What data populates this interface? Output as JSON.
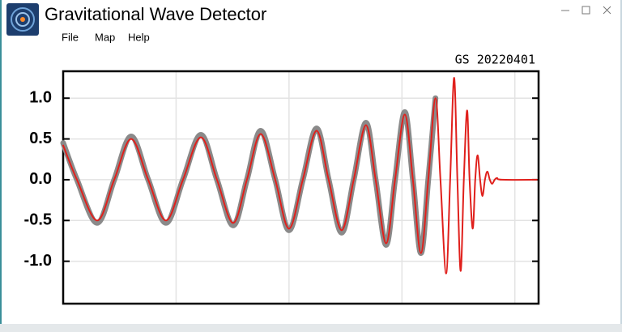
{
  "window": {
    "title": "Gravitational Wave Detector",
    "menu": [
      "File",
      "Map",
      "Help"
    ]
  },
  "chart_data": {
    "type": "line",
    "title": "GS 20220401",
    "x": [
      0,
      0.122,
      0.301,
      0.452,
      0.602,
      0.753,
      0.91,
      1.061,
      1.219,
      1.362,
      1.505,
      1.627,
      1.749,
      1.878,
      2.0,
      2.122,
      2.244,
      2.351,
      2.466,
      2.573,
      2.681,
      2.767,
      2.86,
      2.939,
      3.025,
      3.097,
      3.168,
      3.233,
      3.297,
      3.341,
      3.391,
      3.427,
      3.462,
      3.491,
      3.52,
      3.548,
      3.577,
      3.599,
      3.627,
      3.649,
      3.67,
      3.692,
      3.713,
      3.735,
      3.756,
      3.778,
      3.799,
      3.821,
      3.842,
      3.885,
      4.194
    ],
    "series": [
      {
        "color": "#8a8a8a",
        "linewidth": 7,
        "values": [
          0.45,
          0,
          -0.53,
          0,
          0.53,
          0,
          -0.53,
          0,
          0.55,
          0,
          -0.56,
          0,
          0.6,
          0,
          -0.62,
          0,
          0.63,
          0,
          -0.65,
          0,
          0.7,
          0,
          -0.8,
          0,
          0.83,
          0,
          -0.9,
          0,
          1.0,
          null,
          null,
          null,
          null,
          null,
          null,
          null,
          null,
          null,
          null,
          null,
          null,
          null,
          null,
          null,
          null,
          null,
          null,
          null,
          null,
          null,
          null
        ]
      },
      {
        "color": "#e0201c",
        "linewidth": 2,
        "values": [
          0.42,
          0,
          -0.5,
          0,
          0.5,
          0,
          -0.5,
          0,
          0.52,
          0,
          -0.53,
          0,
          0.56,
          0,
          -0.6,
          0,
          0.6,
          0,
          -0.62,
          0,
          0.67,
          0,
          -0.78,
          0,
          0.8,
          0,
          -0.9,
          0,
          1.0,
          0,
          -1.15,
          0,
          1.25,
          0,
          -1.12,
          0,
          0.85,
          0,
          -0.6,
          0,
          0.3,
          0,
          -0.2,
          0,
          0.1,
          0,
          -0.05,
          0,
          0.02,
          0,
          0
        ]
      }
    ],
    "xlim": [
      0,
      4.21
    ],
    "xgrid": [
      1,
      2,
      3,
      4
    ],
    "ylim": [
      -1.52,
      1.33
    ],
    "yticks": [
      {
        "value": -1,
        "label": "-1.0"
      },
      -0.5,
      {
        "value": 0,
        "label": "0.0"
      },
      0.5,
      {
        "value": 1,
        "label": "1.0"
      }
    ],
    "grid": true
  }
}
